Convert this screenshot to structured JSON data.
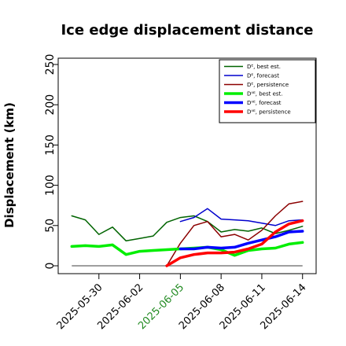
{
  "chart_data": {
    "type": "line",
    "title": "Ice edge displacement distance",
    "xlabel": "",
    "ylabel": "Displacement (km)",
    "ylim": [
      0,
      260
    ],
    "yticks": [
      0,
      50,
      100,
      150,
      200,
      250
    ],
    "xlim": [
      "2025-05-27",
      "2025-06-15"
    ],
    "x_tick_labels": [
      "2025-05-30",
      "2025-06-02",
      "2025-06-05",
      "2025-06-08",
      "2025-06-11",
      "2025-06-14"
    ],
    "x_tick_dates": [
      "2025-05-30",
      "2025-06-02",
      "2025-06-05",
      "2025-06-08",
      "2025-06-11",
      "2025-06-14"
    ],
    "x_tick_colors": [
      "#000000",
      "#000000",
      "#228b22",
      "#000000",
      "#000000",
      "#000000"
    ],
    "grid": false,
    "legend_position": "top-right",
    "baseline": {
      "y": 0,
      "color": "#666666",
      "x": [
        "2025-05-28",
        "2025-06-14"
      ]
    },
    "series": [
      {
        "name": "Dᴱ, best est.",
        "color": "#006400",
        "width": 1.5,
        "x": [
          "2025-05-28",
          "2025-05-29",
          "2025-05-30",
          "2025-05-31",
          "2025-06-01",
          "2025-06-02",
          "2025-06-03",
          "2025-06-04",
          "2025-06-05",
          "2025-06-06",
          "2025-06-07",
          "2025-06-08",
          "2025-06-09",
          "2025-06-10",
          "2025-06-11",
          "2025-06-12",
          "2025-06-13",
          "2025-06-14"
        ],
        "values": [
          62,
          57,
          39,
          48,
          31,
          34,
          37,
          54,
          60,
          62,
          55,
          42,
          45,
          43,
          47,
          40,
          44,
          49
        ]
      },
      {
        "name": "Dᴱ, forecast",
        "color": "#0000cd",
        "width": 1.5,
        "x": [
          "2025-06-05",
          "2025-06-06",
          "2025-06-07",
          "2025-06-08",
          "2025-06-09",
          "2025-06-10",
          "2025-06-11",
          "2025-06-12",
          "2025-06-13",
          "2025-06-14"
        ],
        "values": [
          55,
          60,
          71,
          58,
          57,
          56,
          53,
          50,
          56,
          57
        ]
      },
      {
        "name": "Dᴱ, persistence",
        "color": "#8b0000",
        "width": 1.5,
        "x": [
          "2025-06-04",
          "2025-06-05",
          "2025-06-06",
          "2025-06-07",
          "2025-06-08",
          "2025-06-09",
          "2025-06-10",
          "2025-06-11",
          "2025-06-12",
          "2025-06-13",
          "2025-06-14"
        ],
        "values": [
          0,
          28,
          50,
          55,
          36,
          39,
          32,
          44,
          62,
          77,
          80
        ]
      },
      {
        "name": "Dᴵᴵᴱ, best est.",
        "color": "#00ee00",
        "width": 3.5,
        "x": [
          "2025-05-28",
          "2025-05-29",
          "2025-05-30",
          "2025-05-31",
          "2025-06-01",
          "2025-06-02",
          "2025-06-03",
          "2025-06-04",
          "2025-06-05",
          "2025-06-06",
          "2025-06-07",
          "2025-06-08",
          "2025-06-09",
          "2025-06-10",
          "2025-06-11",
          "2025-06-12",
          "2025-06-13",
          "2025-06-14"
        ],
        "values": [
          24,
          25,
          24,
          26,
          14,
          18,
          19,
          20,
          21,
          22,
          23,
          20,
          13,
          19,
          21,
          22,
          27,
          29
        ]
      },
      {
        "name": "Dᴵᴵᴱ, forecast",
        "color": "#0000ff",
        "width": 3.5,
        "x": [
          "2025-06-05",
          "2025-06-06",
          "2025-06-07",
          "2025-06-08",
          "2025-06-09",
          "2025-06-10",
          "2025-06-11",
          "2025-06-12",
          "2025-06-13",
          "2025-06-14"
        ],
        "values": [
          21,
          21,
          23,
          22,
          23,
          28,
          32,
          36,
          42,
          43
        ]
      },
      {
        "name": "Dᴵᴵᴱ, persistence",
        "color": "#ff0000",
        "width": 3.5,
        "x": [
          "2025-06-04",
          "2025-06-05",
          "2025-06-06",
          "2025-06-07",
          "2025-06-08",
          "2025-06-09",
          "2025-06-10",
          "2025-06-11",
          "2025-06-12",
          "2025-06-13",
          "2025-06-14"
        ],
        "values": [
          0,
          10,
          14,
          16,
          16,
          17,
          21,
          27,
          42,
          52,
          56
        ]
      }
    ]
  }
}
